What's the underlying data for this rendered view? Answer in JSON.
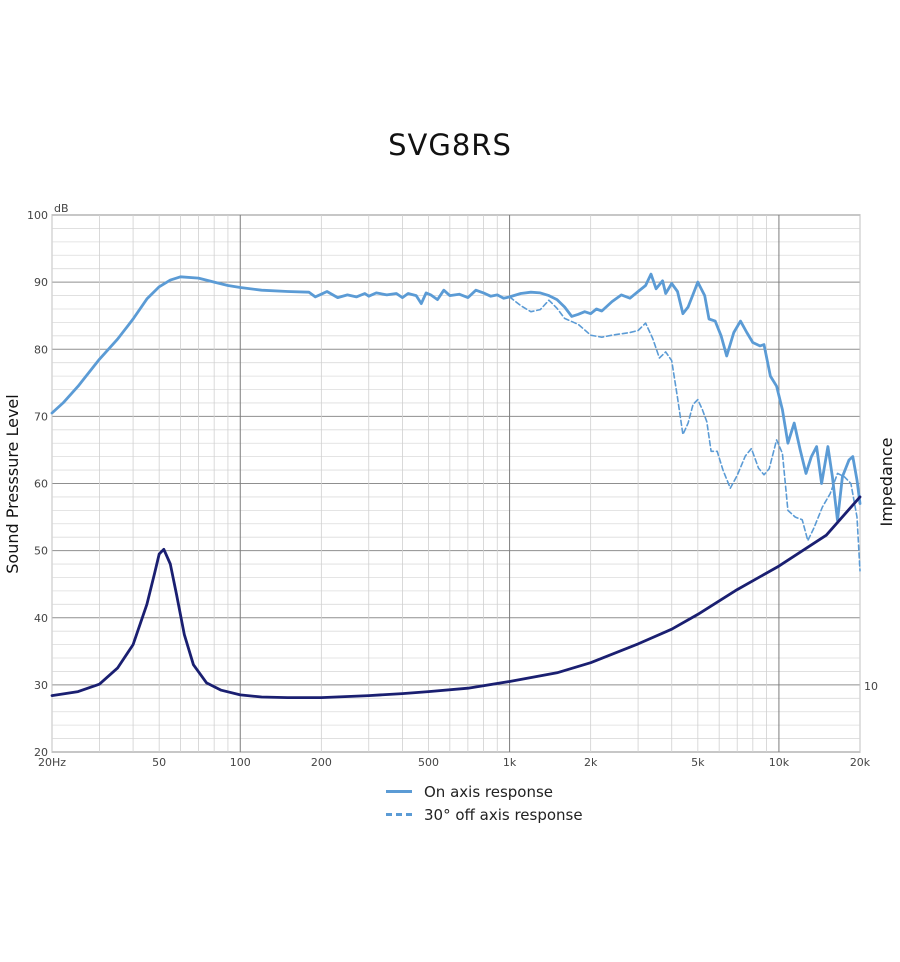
{
  "chart_data": {
    "type": "line",
    "title": "SVG8RS",
    "xscale": "log",
    "xlim": [
      20,
      20000
    ],
    "x_ticks": [
      {
        "v": 20,
        "label": "20Hz"
      },
      {
        "v": 50,
        "label": "50"
      },
      {
        "v": 100,
        "label": "100"
      },
      {
        "v": 200,
        "label": "200"
      },
      {
        "v": 500,
        "label": "500"
      },
      {
        "v": 1000,
        "label": "1k"
      },
      {
        "v": 2000,
        "label": "2k"
      },
      {
        "v": 5000,
        "label": "5k"
      },
      {
        "v": 10000,
        "label": "10k"
      },
      {
        "v": 20000,
        "label": "20k"
      }
    ],
    "ylabel": "Sound Presssure Level",
    "yunit": "dB",
    "ylim": [
      20,
      100
    ],
    "y_ticks": [
      20,
      30,
      40,
      50,
      60,
      70,
      80,
      90,
      100
    ],
    "y2label": "Impedance",
    "y2_ticks": [
      {
        "v": 10,
        "label": "10"
      }
    ],
    "grid": true,
    "legend_position": "bottom",
    "series": [
      {
        "name": "On axis response",
        "axis": "left",
        "color": "#5b9bd5",
        "style": "solid",
        "points": [
          [
            20,
            70.5
          ],
          [
            22,
            72
          ],
          [
            25,
            74.5
          ],
          [
            28,
            77
          ],
          [
            30,
            78.5
          ],
          [
            35,
            81.5
          ],
          [
            40,
            84.5
          ],
          [
            45,
            87.5
          ],
          [
            50,
            89.3
          ],
          [
            55,
            90.3
          ],
          [
            60,
            90.8
          ],
          [
            70,
            90.6
          ],
          [
            80,
            90
          ],
          [
            90,
            89.5
          ],
          [
            100,
            89.2
          ],
          [
            120,
            88.8
          ],
          [
            150,
            88.6
          ],
          [
            180,
            88.5
          ],
          [
            190,
            87.8
          ],
          [
            200,
            88.2
          ],
          [
            210,
            88.6
          ],
          [
            230,
            87.7
          ],
          [
            250,
            88.1
          ],
          [
            270,
            87.8
          ],
          [
            290,
            88.3
          ],
          [
            300,
            87.9
          ],
          [
            320,
            88.4
          ],
          [
            350,
            88.1
          ],
          [
            380,
            88.3
          ],
          [
            400,
            87.7
          ],
          [
            420,
            88.3
          ],
          [
            450,
            88
          ],
          [
            470,
            86.8
          ],
          [
            490,
            88.4
          ],
          [
            510,
            88.1
          ],
          [
            540,
            87.4
          ],
          [
            570,
            88.8
          ],
          [
            600,
            88
          ],
          [
            650,
            88.2
          ],
          [
            700,
            87.7
          ],
          [
            750,
            88.8
          ],
          [
            800,
            88.4
          ],
          [
            850,
            87.9
          ],
          [
            900,
            88.1
          ],
          [
            950,
            87.6
          ],
          [
            1000,
            87.8
          ],
          [
            1100,
            88.3
          ],
          [
            1200,
            88.5
          ],
          [
            1300,
            88.4
          ],
          [
            1400,
            88.0
          ],
          [
            1500,
            87.4
          ],
          [
            1600,
            86.3
          ],
          [
            1700,
            84.9
          ],
          [
            1800,
            85.2
          ],
          [
            1900,
            85.6
          ],
          [
            2000,
            85.3
          ],
          [
            2100,
            86
          ],
          [
            2200,
            85.7
          ],
          [
            2400,
            87.1
          ],
          [
            2600,
            88.1
          ],
          [
            2800,
            87.6
          ],
          [
            3000,
            88.6
          ],
          [
            3200,
            89.5
          ],
          [
            3350,
            91.2
          ],
          [
            3500,
            89
          ],
          [
            3700,
            90.2
          ],
          [
            3800,
            88.3
          ],
          [
            4000,
            89.8
          ],
          [
            4200,
            88.6
          ],
          [
            4400,
            85.3
          ],
          [
            4600,
            86.3
          ],
          [
            4800,
            88.2
          ],
          [
            5000,
            90
          ],
          [
            5300,
            88
          ],
          [
            5500,
            84.5
          ],
          [
            5800,
            84.2
          ],
          [
            6100,
            82
          ],
          [
            6400,
            79
          ],
          [
            6800,
            82.5
          ],
          [
            7200,
            84.2
          ],
          [
            7600,
            82.5
          ],
          [
            8000,
            81
          ],
          [
            8500,
            80.5
          ],
          [
            8800,
            80.7
          ],
          [
            9300,
            76
          ],
          [
            9800,
            74.5
          ],
          [
            10300,
            71
          ],
          [
            10800,
            66
          ],
          [
            11400,
            69
          ],
          [
            12000,
            65
          ],
          [
            12600,
            61.5
          ],
          [
            13200,
            64
          ],
          [
            13800,
            65.5
          ],
          [
            14400,
            60
          ],
          [
            15200,
            65.5
          ],
          [
            15800,
            61
          ],
          [
            16500,
            54.5
          ],
          [
            17200,
            61
          ],
          [
            18200,
            63.5
          ],
          [
            18800,
            64
          ],
          [
            19500,
            60.5
          ],
          [
            20000,
            57
          ]
        ]
      },
      {
        "name": "30° off axis response",
        "axis": "left",
        "color": "#5b9bd5",
        "style": "dashed",
        "points": [
          [
            1000,
            87.8
          ],
          [
            1100,
            86.5
          ],
          [
            1200,
            85.6
          ],
          [
            1300,
            85.9
          ],
          [
            1400,
            87.3
          ],
          [
            1500,
            86.1
          ],
          [
            1600,
            84.6
          ],
          [
            1800,
            83.7
          ],
          [
            2000,
            82.1
          ],
          [
            2200,
            81.8
          ],
          [
            2400,
            82.1
          ],
          [
            2600,
            82.3
          ],
          [
            2800,
            82.5
          ],
          [
            3000,
            82.8
          ],
          [
            3200,
            83.9
          ],
          [
            3400,
            81.6
          ],
          [
            3600,
            78.7
          ],
          [
            3800,
            79.6
          ],
          [
            4000,
            78.3
          ],
          [
            4200,
            72.8
          ],
          [
            4400,
            67.3
          ],
          [
            4600,
            69
          ],
          [
            4800,
            71.8
          ],
          [
            5000,
            72.5
          ],
          [
            5200,
            71
          ],
          [
            5400,
            69.2
          ],
          [
            5600,
            64.8
          ],
          [
            5900,
            64.8
          ],
          [
            6200,
            62
          ],
          [
            6600,
            59.3
          ],
          [
            7000,
            61.2
          ],
          [
            7500,
            64.1
          ],
          [
            7900,
            65.2
          ],
          [
            8400,
            62.3
          ],
          [
            8800,
            61.3
          ],
          [
            9200,
            62.2
          ],
          [
            9800,
            66.5
          ],
          [
            10300,
            64.5
          ],
          [
            10800,
            56
          ],
          [
            11500,
            55
          ],
          [
            12200,
            54.6
          ],
          [
            12800,
            51.5
          ],
          [
            13500,
            53.4
          ],
          [
            14500,
            56.5
          ],
          [
            15500,
            58.5
          ],
          [
            16500,
            61.5
          ],
          [
            17500,
            61
          ],
          [
            18500,
            60
          ],
          [
            19500,
            55
          ],
          [
            20000,
            47
          ]
        ]
      },
      {
        "name": "Impedance",
        "axis": "right",
        "color": "#1a1f71",
        "style": "solid",
        "points": [
          [
            20,
            28.4
          ],
          [
            25,
            29
          ],
          [
            30,
            30.1
          ],
          [
            35,
            32.5
          ],
          [
            40,
            36
          ],
          [
            45,
            42
          ],
          [
            48,
            46.5
          ],
          [
            50,
            49.5
          ],
          [
            52,
            50.2
          ],
          [
            55,
            48
          ],
          [
            58,
            43.5
          ],
          [
            62,
            37.5
          ],
          [
            67,
            33
          ],
          [
            75,
            30.3
          ],
          [
            85,
            29.2
          ],
          [
            100,
            28.5
          ],
          [
            120,
            28.2
          ],
          [
            150,
            28.1
          ],
          [
            200,
            28.1
          ],
          [
            300,
            28.4
          ],
          [
            400,
            28.7
          ],
          [
            500,
            29
          ],
          [
            700,
            29.5
          ],
          [
            1000,
            30.5
          ],
          [
            1500,
            31.8
          ],
          [
            2000,
            33.3
          ],
          [
            3000,
            36.1
          ],
          [
            4000,
            38.3
          ],
          [
            5000,
            40.5
          ],
          [
            7000,
            44.2
          ],
          [
            10000,
            47.7
          ],
          [
            15000,
            52.3
          ],
          [
            20000,
            58
          ]
        ]
      }
    ]
  }
}
